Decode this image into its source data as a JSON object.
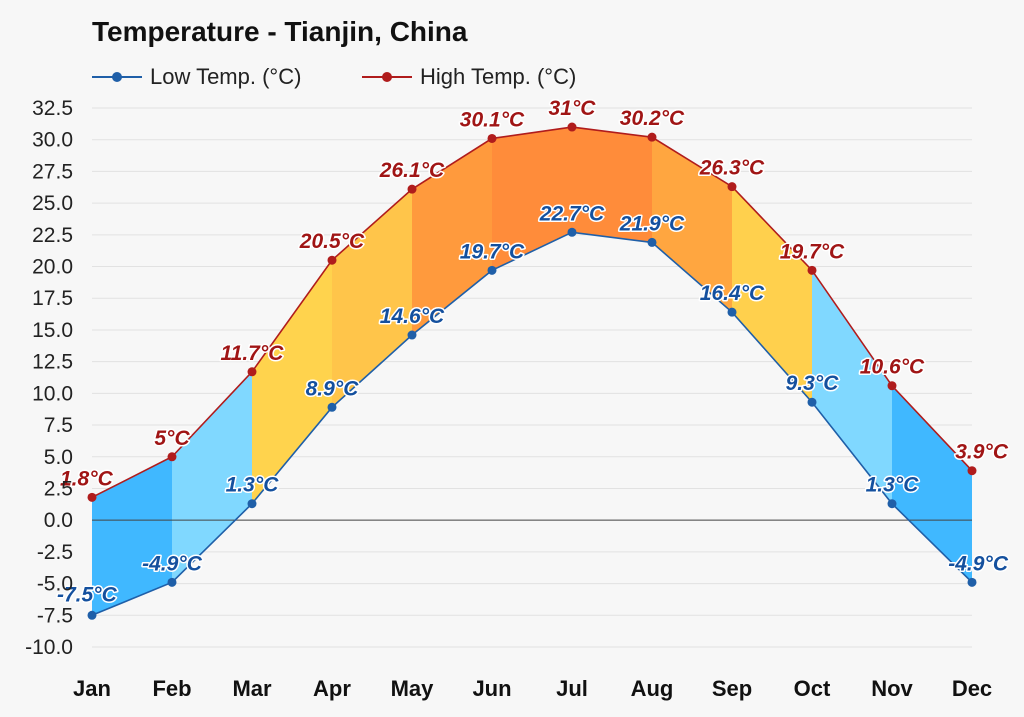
{
  "chart_data": {
    "type": "area",
    "title": "Temperature - Tianjin, China",
    "categories": [
      "Jan",
      "Feb",
      "Mar",
      "Apr",
      "May",
      "Jun",
      "Jul",
      "Aug",
      "Sep",
      "Oct",
      "Nov",
      "Dec"
    ],
    "series": [
      {
        "name": "Low Temp. (°C)",
        "color": "#1f5fa8",
        "values": [
          -7.5,
          -4.9,
          1.3,
          8.9,
          14.6,
          19.7,
          22.7,
          21.9,
          16.4,
          9.3,
          1.3,
          -4.9
        ],
        "labels": [
          "-7.5°C",
          "-4.9°C",
          "1.3°C",
          "8.9°C",
          "14.6°C",
          "19.7°C",
          "22.7°C",
          "21.9°C",
          "16.4°C",
          "9.3°C",
          "1.3°C",
          "-4.9°C"
        ]
      },
      {
        "name": "High Temp. (°C)",
        "color": "#b01c1c",
        "values": [
          1.8,
          5,
          11.7,
          20.5,
          26.1,
          30.1,
          31,
          30.2,
          26.3,
          19.7,
          10.6,
          3.9
        ],
        "labels": [
          "1.8°C",
          "5°C",
          "11.7°C",
          "20.5°C",
          "26.1°C",
          "30.1°C",
          "31°C",
          "30.2°C",
          "26.3°C",
          "19.7°C",
          "10.6°C",
          "3.9°C"
        ]
      }
    ],
    "ylim": [
      -10,
      32.5
    ],
    "yticks": [
      "32.5",
      "30.0",
      "27.5",
      "25.0",
      "22.5",
      "20.0",
      "17.5",
      "15.0",
      "12.5",
      "10.0",
      "7.5",
      "5.0",
      "2.5",
      "0.0",
      "-2.5",
      "-5.0",
      "-7.5",
      "-10.0"
    ],
    "grid": true,
    "legend_position": "top-left",
    "band_colors": [
      "#40b8ff",
      "#80d8ff",
      "#ffd34d",
      "#ffc54a",
      "#ff9a3d",
      "#ff8c3a",
      "#ff8c3a",
      "#ffa640",
      "#ffd04d",
      "#80d8ff",
      "#40b8ff",
      "#40b8ff"
    ],
    "xlabel": "",
    "ylabel": ""
  }
}
